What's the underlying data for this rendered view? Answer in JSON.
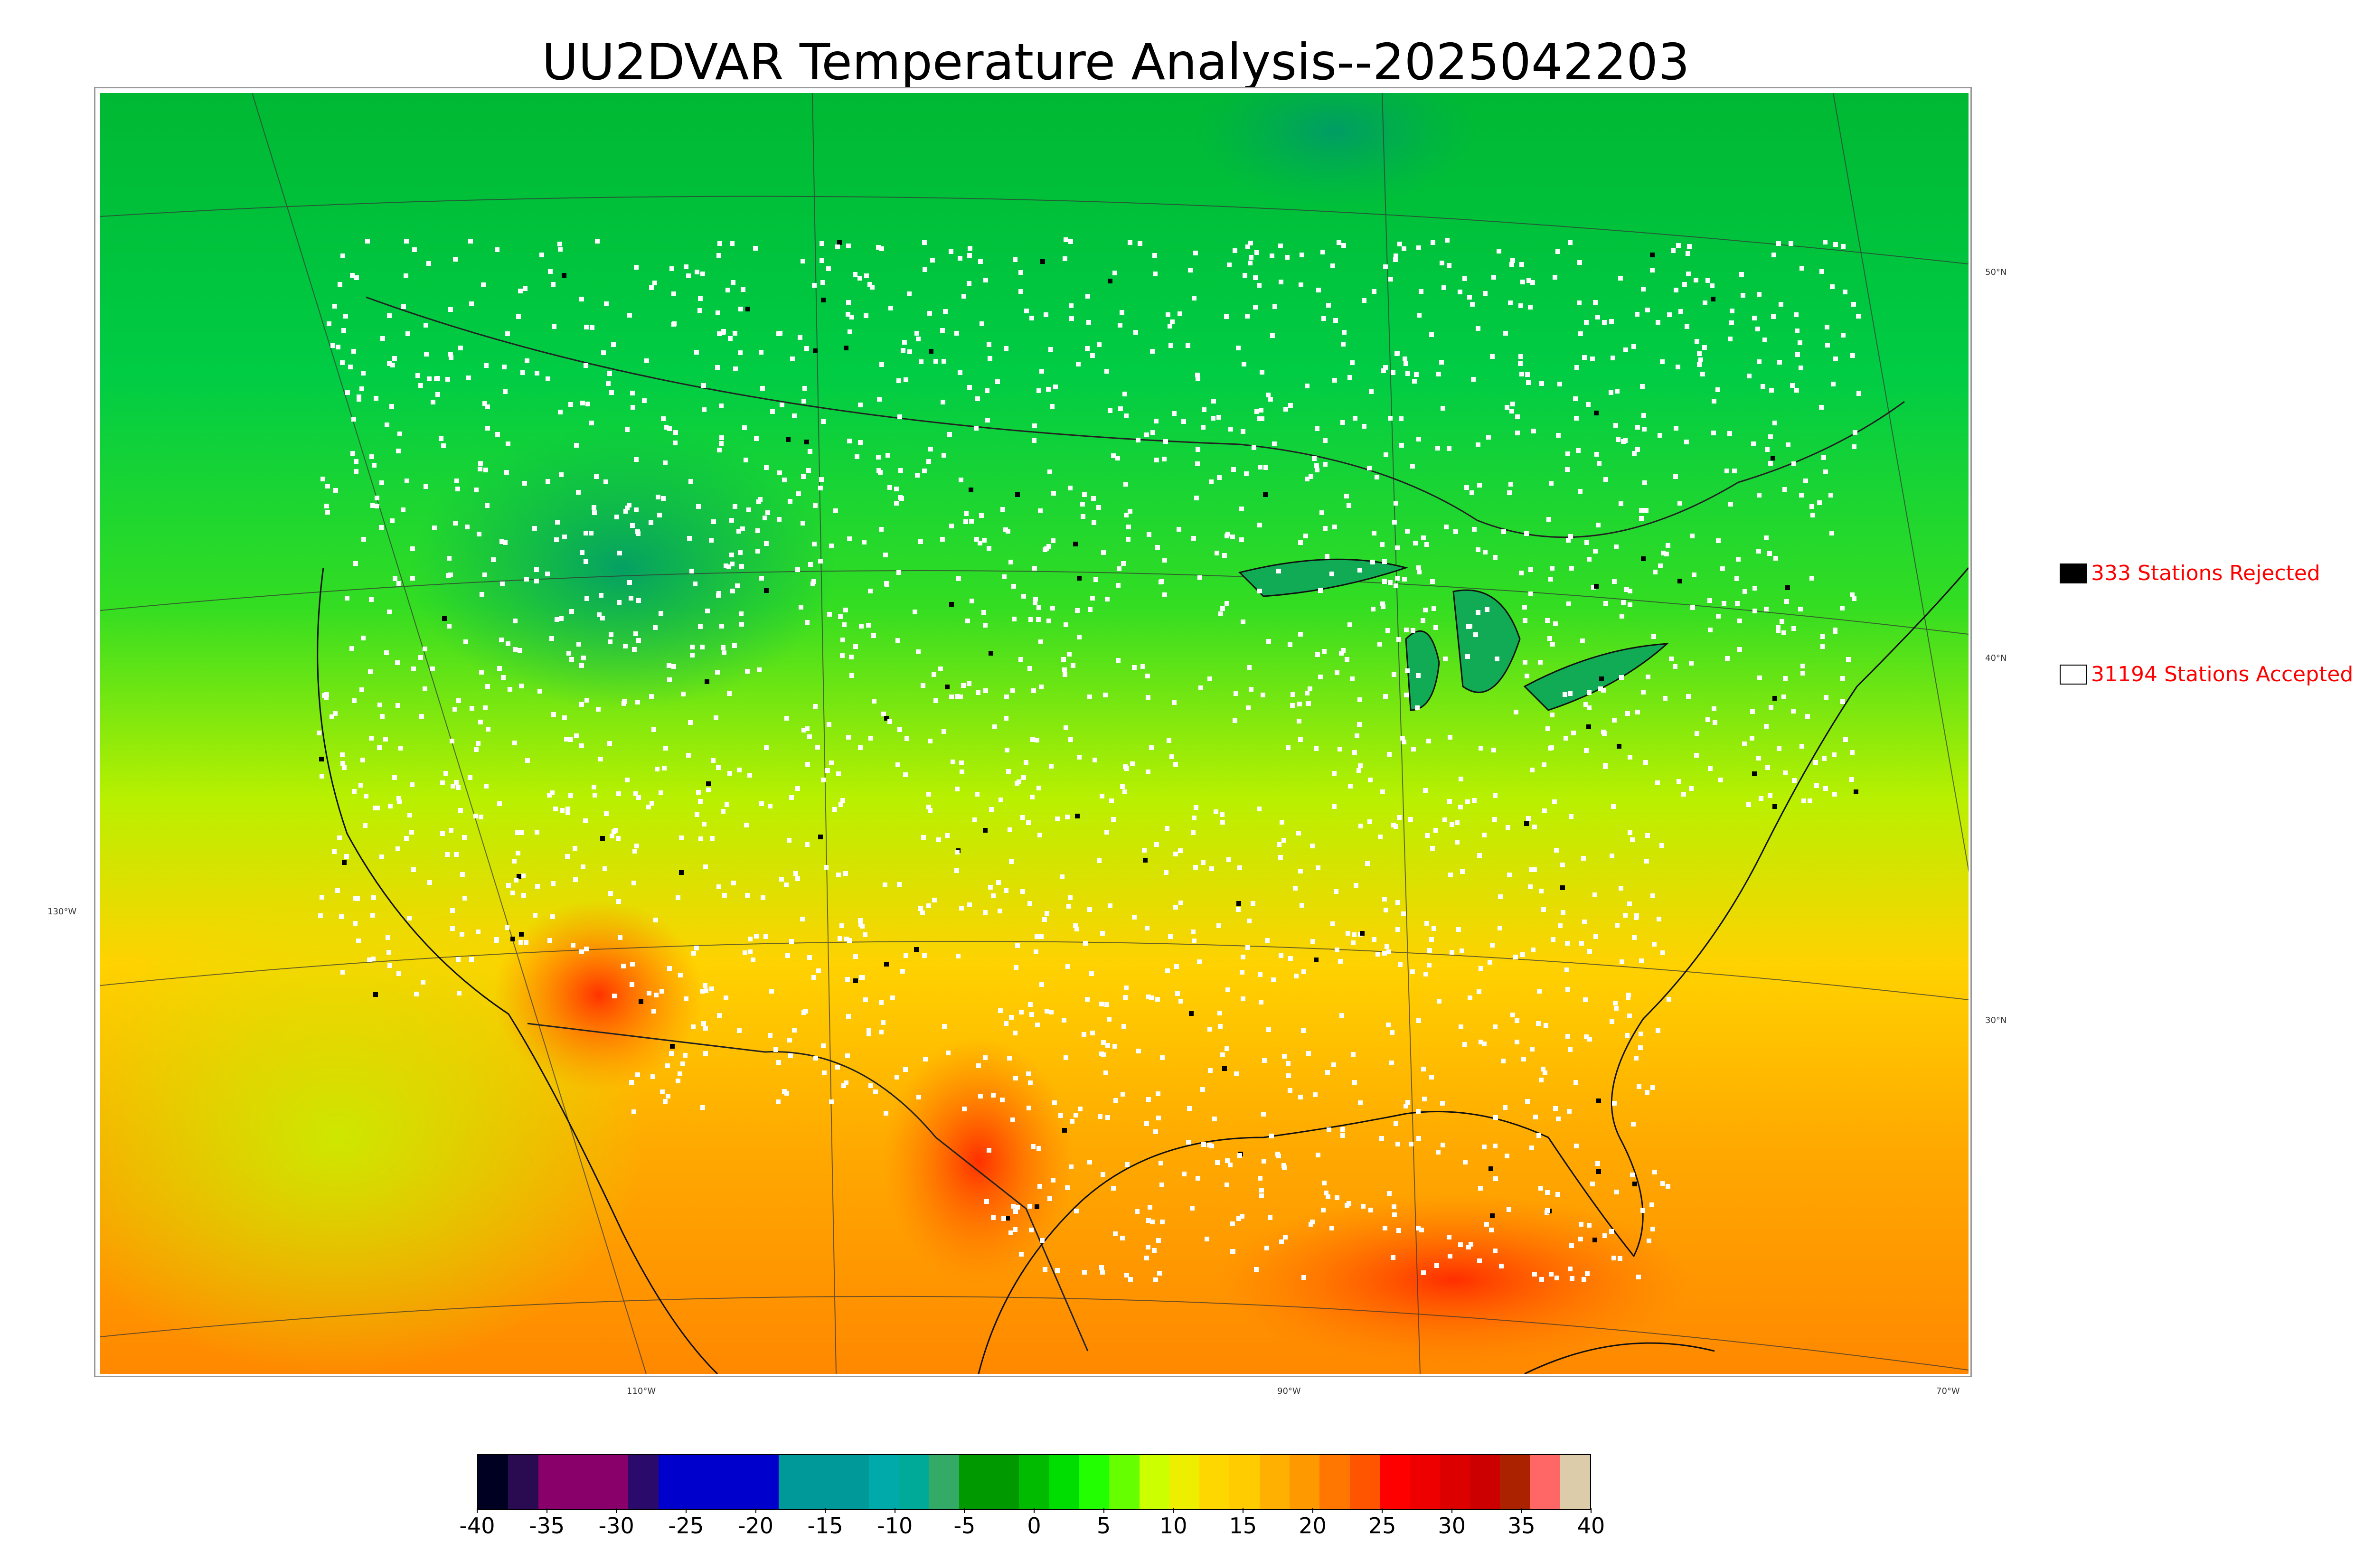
{
  "title": "UU2DVAR Temperature Analysis--2025042203",
  "map": {
    "lat_labels": [
      "50°N",
      "40°N",
      "30°N"
    ],
    "lon_labels": [
      "130°W",
      "110°W",
      "90°W",
      "70°W"
    ],
    "colors": {
      "north": "#00cc33",
      "mid": "#c8f000",
      "south": "#ff9a00",
      "hot": "#ff2200",
      "cold": "#009966",
      "accepted": "#ffffff",
      "rejected": "#000000"
    }
  },
  "legend": {
    "rejected_label": "333 Stations Rejected",
    "accepted_label": "31194 Stations Accepted"
  },
  "colorbar": {
    "min": -40,
    "max": 40,
    "tick_labels": [
      "-40",
      "-35",
      "-30",
      "-25",
      "-20",
      "-15",
      "-10",
      "-5",
      "0",
      "5",
      "10",
      "15",
      "20",
      "25",
      "30",
      "35",
      "40"
    ],
    "colors": [
      "#000022",
      "#2a0a50",
      "#8a006a",
      "#8a006a",
      "#8a006a",
      "#2a0a6a",
      "#0000cc",
      "#0000cc",
      "#0000cc",
      "#0000cc",
      "#009999",
      "#009999",
      "#009999",
      "#00aaaa",
      "#00aa99",
      "#33aa66",
      "#009900",
      "#009900",
      "#00bb00",
      "#00dd00",
      "#22ff00",
      "#66ff00",
      "#ccff00",
      "#eeee00",
      "#ffd700",
      "#ffcc00",
      "#ffb000",
      "#ff9900",
      "#ff7700",
      "#ff5500",
      "#ff0000",
      "#ee0000",
      "#dd0000",
      "#cc0000",
      "#aa2200",
      "#ff6666",
      "#ddccaa"
    ]
  }
}
